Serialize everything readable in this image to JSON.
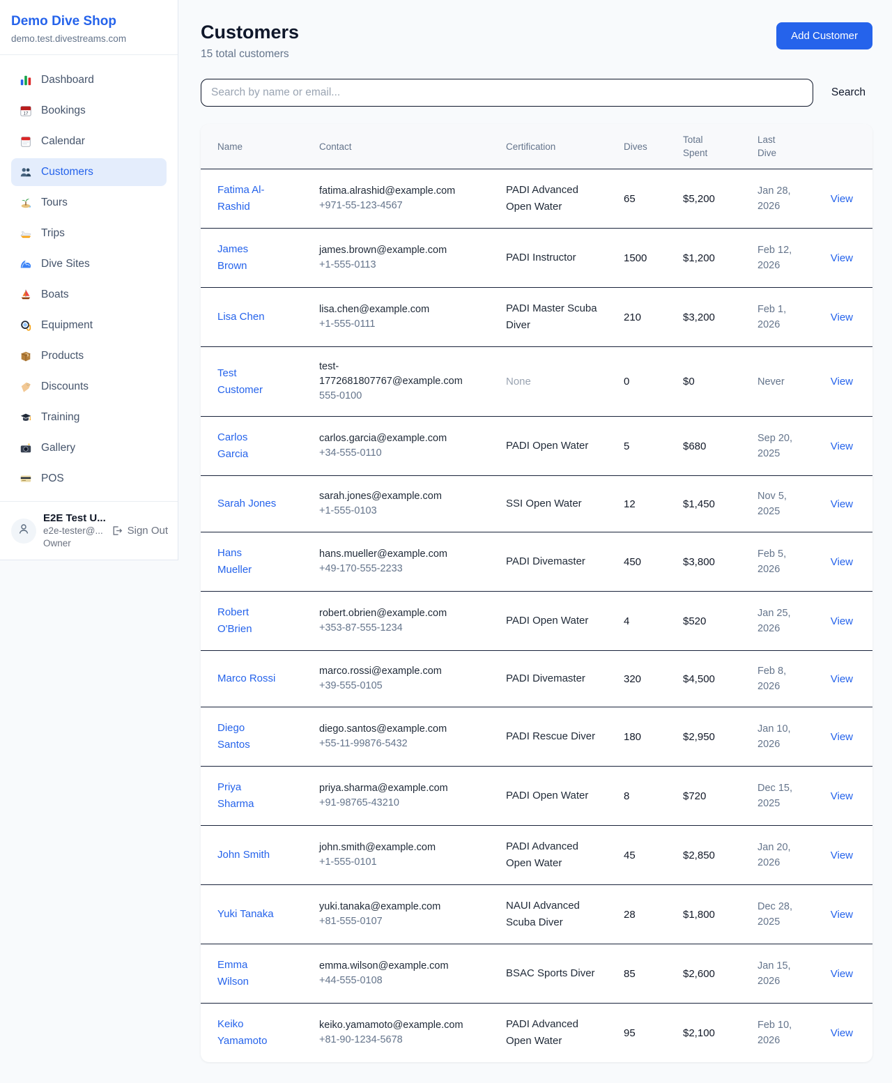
{
  "sidebar": {
    "title": "Demo Dive Shop",
    "subtitle": "demo.test.divestreams.com",
    "items": [
      {
        "label": "Dashboard",
        "icon": "bar-chart-icon",
        "active": false
      },
      {
        "label": "Bookings",
        "icon": "calendar-icon",
        "active": false
      },
      {
        "label": "Calendar",
        "icon": "tear-off-calendar-icon",
        "active": false
      },
      {
        "label": "Customers",
        "icon": "people-icon",
        "active": true
      },
      {
        "label": "Tours",
        "icon": "island-icon",
        "active": false
      },
      {
        "label": "Trips",
        "icon": "speedboat-icon",
        "active": false
      },
      {
        "label": "Dive Sites",
        "icon": "wave-icon",
        "active": false
      },
      {
        "label": "Boats",
        "icon": "sailboat-icon",
        "active": false
      },
      {
        "label": "Equipment",
        "icon": "diving-mask-icon",
        "active": false
      },
      {
        "label": "Products",
        "icon": "package-icon",
        "active": false
      },
      {
        "label": "Discounts",
        "icon": "tag-icon",
        "active": false
      },
      {
        "label": "Training",
        "icon": "graduation-cap-icon",
        "active": false
      },
      {
        "label": "Gallery",
        "icon": "camera-icon",
        "active": false
      },
      {
        "label": "POS",
        "icon": "credit-card-icon",
        "active": false
      }
    ],
    "user": {
      "name": "E2E Test U...",
      "email": "e2e-tester@...",
      "role": "Owner",
      "sign_out_label": "Sign Out"
    }
  },
  "header": {
    "title": "Customers",
    "subtitle": "15 total customers",
    "add_customer_label": "Add Customer"
  },
  "search": {
    "placeholder": "Search by name or email...",
    "button_label": "Search"
  },
  "table": {
    "columns": [
      "Name",
      "Contact",
      "Certification",
      "Dives",
      "Total Spent",
      "Last Dive",
      ""
    ],
    "rows": [
      {
        "name": "Fatima Al-Rashid",
        "email": "fatima.alrashid@example.com",
        "phone": "+971-55-123-4567",
        "certification": "PADI Advanced Open Water",
        "certification_muted": false,
        "dives": "65",
        "total_spent": "$5,200",
        "last_dive": "Jan 28, 2026",
        "action": "View"
      },
      {
        "name": "James Brown",
        "email": "james.brown@example.com",
        "phone": "+1-555-0113",
        "certification": "PADI Instructor",
        "certification_muted": false,
        "dives": "1500",
        "total_spent": "$1,200",
        "last_dive": "Feb 12, 2026",
        "action": "View"
      },
      {
        "name": "Lisa Chen",
        "email": "lisa.chen@example.com",
        "phone": "+1-555-0111",
        "certification": "PADI Master Scuba Diver",
        "certification_muted": false,
        "dives": "210",
        "total_spent": "$3,200",
        "last_dive": "Feb 1, 2026",
        "action": "View"
      },
      {
        "name": "Test Customer",
        "email": "test-1772681807767@example.com",
        "phone": "555-0100",
        "certification": "None",
        "certification_muted": true,
        "dives": "0",
        "total_spent": "$0",
        "last_dive": "Never",
        "action": "View"
      },
      {
        "name": "Carlos Garcia",
        "email": "carlos.garcia@example.com",
        "phone": "+34-555-0110",
        "certification": "PADI Open Water",
        "certification_muted": false,
        "dives": "5",
        "total_spent": "$680",
        "last_dive": "Sep 20, 2025",
        "action": "View"
      },
      {
        "name": "Sarah Jones",
        "email": "sarah.jones@example.com",
        "phone": "+1-555-0103",
        "certification": "SSI Open Water",
        "certification_muted": false,
        "dives": "12",
        "total_spent": "$1,450",
        "last_dive": "Nov 5, 2025",
        "action": "View"
      },
      {
        "name": "Hans Mueller",
        "email": "hans.mueller@example.com",
        "phone": "+49-170-555-2233",
        "certification": "PADI Divemaster",
        "certification_muted": false,
        "dives": "450",
        "total_spent": "$3,800",
        "last_dive": "Feb 5, 2026",
        "action": "View"
      },
      {
        "name": "Robert O'Brien",
        "email": "robert.obrien@example.com",
        "phone": "+353-87-555-1234",
        "certification": "PADI Open Water",
        "certification_muted": false,
        "dives": "4",
        "total_spent": "$520",
        "last_dive": "Jan 25, 2026",
        "action": "View"
      },
      {
        "name": "Marco Rossi",
        "email": "marco.rossi@example.com",
        "phone": "+39-555-0105",
        "certification": "PADI Divemaster",
        "certification_muted": false,
        "dives": "320",
        "total_spent": "$4,500",
        "last_dive": "Feb 8, 2026",
        "action": "View"
      },
      {
        "name": "Diego Santos",
        "email": "diego.santos@example.com",
        "phone": "+55-11-99876-5432",
        "certification": "PADI Rescue Diver",
        "certification_muted": false,
        "dives": "180",
        "total_spent": "$2,950",
        "last_dive": "Jan 10, 2026",
        "action": "View"
      },
      {
        "name": "Priya Sharma",
        "email": "priya.sharma@example.com",
        "phone": "+91-98765-43210",
        "certification": "PADI Open Water",
        "certification_muted": false,
        "dives": "8",
        "total_spent": "$720",
        "last_dive": "Dec 15, 2025",
        "action": "View"
      },
      {
        "name": "John Smith",
        "email": "john.smith@example.com",
        "phone": "+1-555-0101",
        "certification": "PADI Advanced Open Water",
        "certification_muted": false,
        "dives": "45",
        "total_spent": "$2,850",
        "last_dive": "Jan 20, 2026",
        "action": "View"
      },
      {
        "name": "Yuki Tanaka",
        "email": "yuki.tanaka@example.com",
        "phone": "+81-555-0107",
        "certification": "NAUI Advanced Scuba Diver",
        "certification_muted": false,
        "dives": "28",
        "total_spent": "$1,800",
        "last_dive": "Dec 28, 2025",
        "action": "View"
      },
      {
        "name": "Emma Wilson",
        "email": "emma.wilson@example.com",
        "phone": "+44-555-0108",
        "certification": "BSAC Sports Diver",
        "certification_muted": false,
        "dives": "85",
        "total_spent": "$2,600",
        "last_dive": "Jan 15, 2026",
        "action": "View"
      },
      {
        "name": "Keiko Yamamoto",
        "email": "keiko.yamamoto@example.com",
        "phone": "+81-90-1234-5678",
        "certification": "PADI Advanced Open Water",
        "certification_muted": false,
        "dives": "95",
        "total_spent": "$2,100",
        "last_dive": "Feb 10, 2026",
        "action": "View"
      }
    ]
  },
  "colors": {
    "accent": "#2563eb",
    "page_background": "#f8fafc",
    "active_nav_background": "#e4edfc",
    "dark_text": "#0f172a",
    "secondary_text": "#64748b",
    "muted_text": "#9aa4b2",
    "row_border": "#18223a",
    "table_header_background": "#f8f9fb"
  }
}
